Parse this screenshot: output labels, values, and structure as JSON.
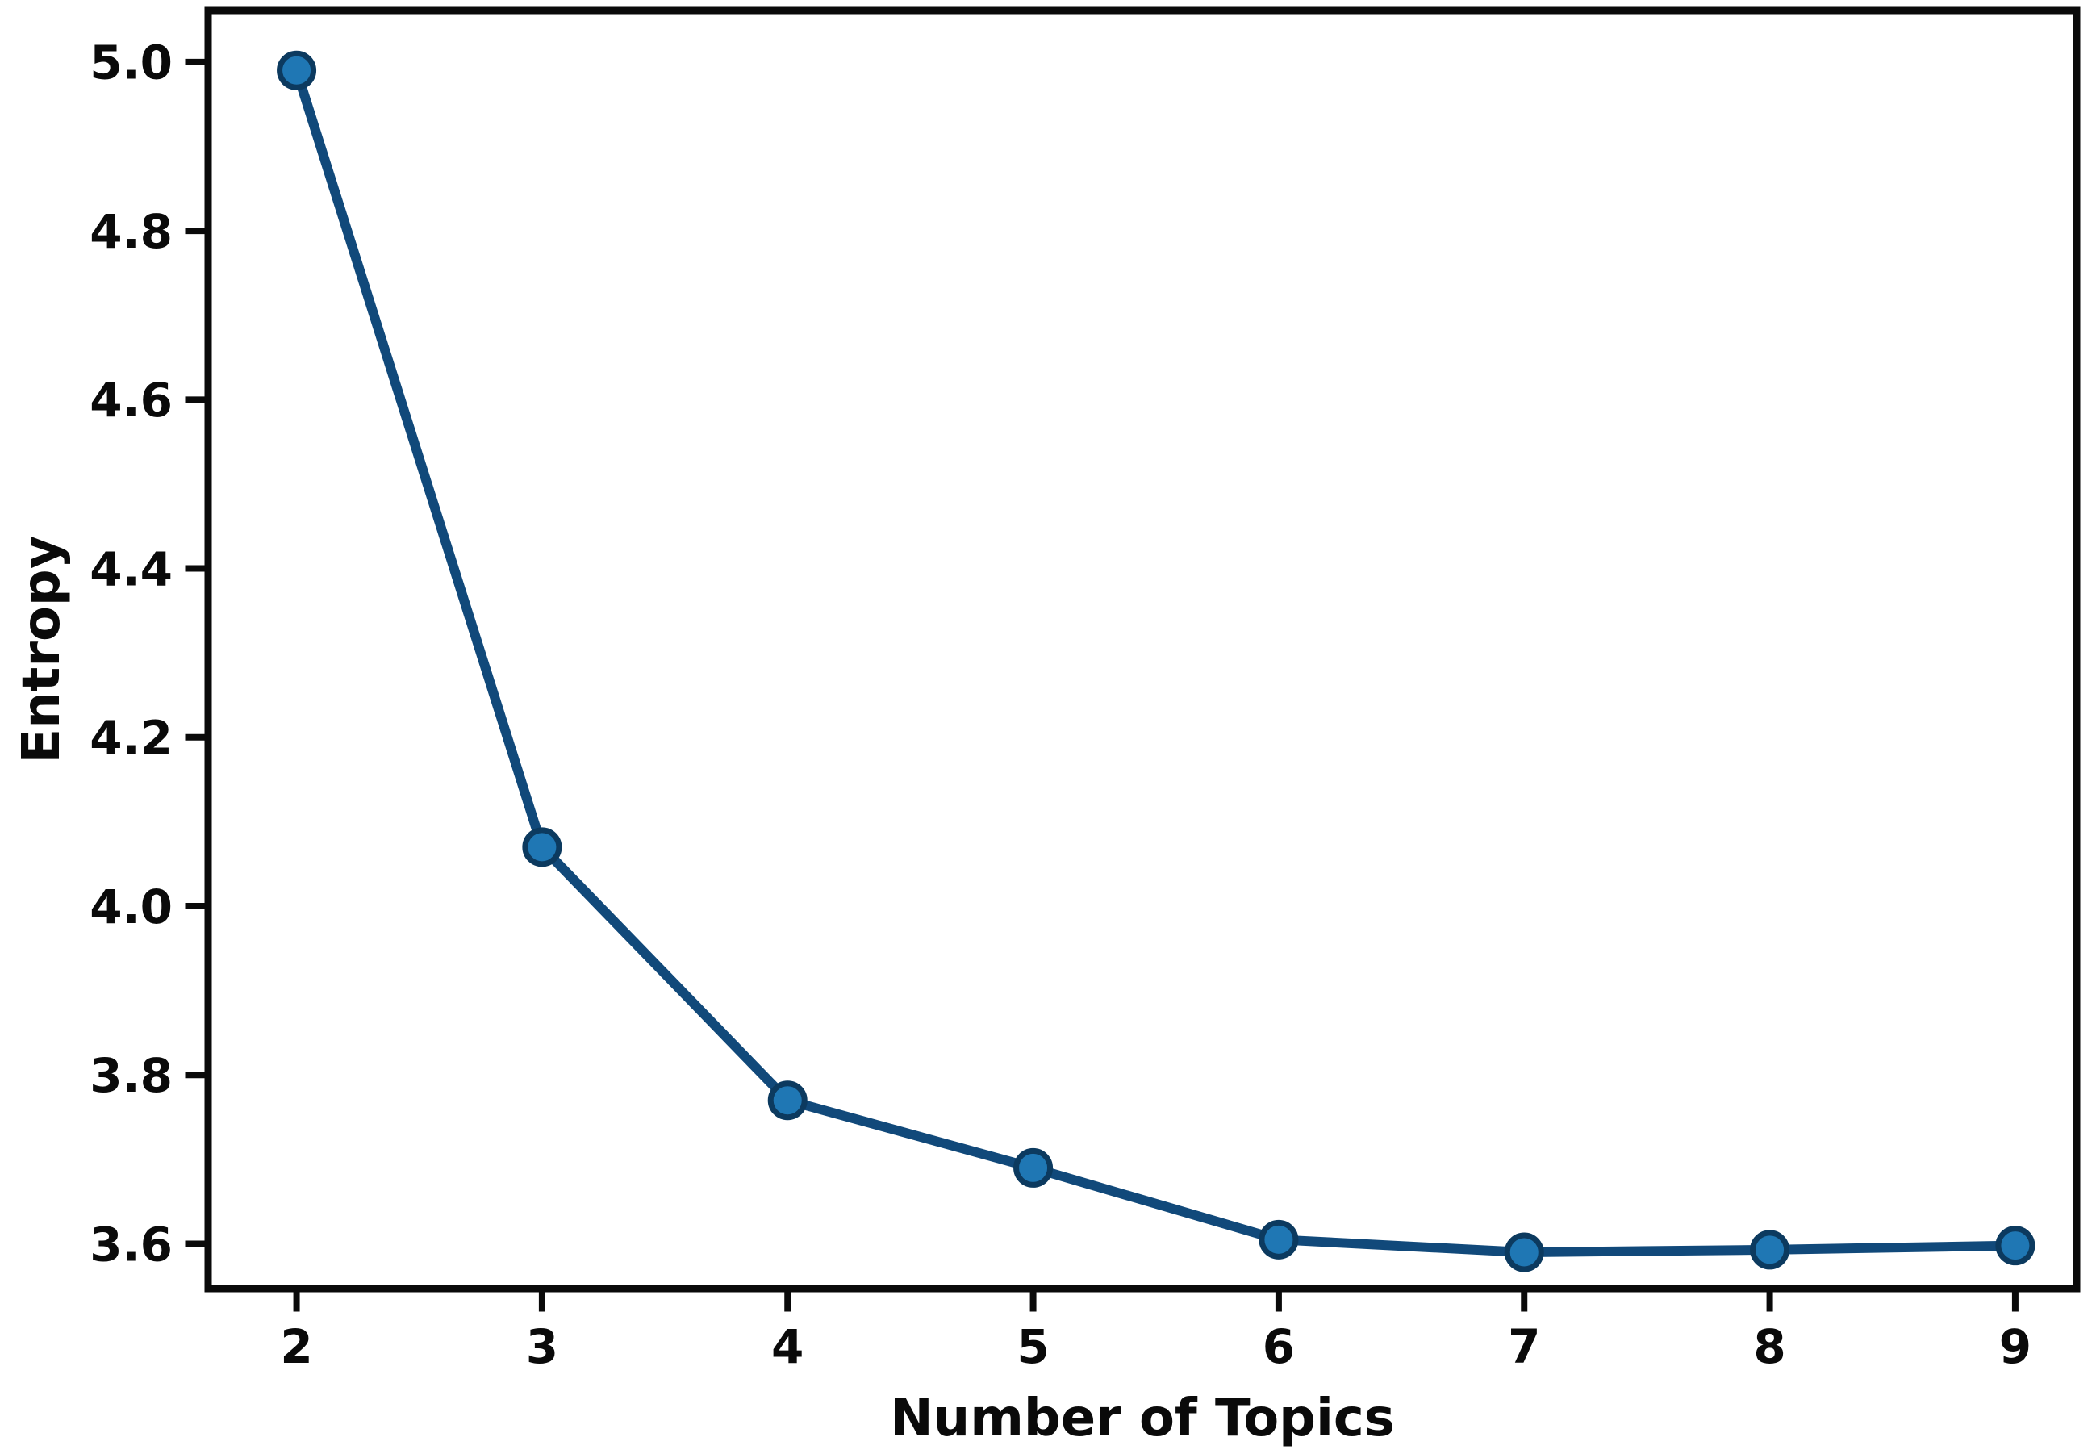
{
  "chart_data": {
    "type": "line",
    "title": "",
    "xlabel": "Number of Topics",
    "ylabel": "Entropy",
    "x": [
      2,
      3,
      4,
      5,
      6,
      7,
      8,
      9
    ],
    "series": [
      {
        "name": "Entropy",
        "values": [
          4.99,
          4.07,
          3.77,
          3.69,
          3.605,
          3.59,
          3.593,
          3.598
        ]
      }
    ],
    "x_ticks": [
      2,
      3,
      4,
      5,
      6,
      7,
      8,
      9
    ],
    "x_tick_labels": [
      "2",
      "3",
      "4",
      "5",
      "6",
      "7",
      "8",
      "9"
    ],
    "y_ticks": [
      3.6,
      3.8,
      4.0,
      4.2,
      4.4,
      4.6,
      4.8,
      5.0
    ],
    "y_tick_labels": [
      "3.6",
      "3.8",
      "4.0",
      "4.2",
      "4.4",
      "4.6",
      "4.8",
      "5.0"
    ],
    "xlim": [
      1.64,
      9.25
    ],
    "ylim": [
      3.547,
      5.061
    ],
    "grid": false,
    "legend": "none",
    "marker": "circle",
    "colors": {
      "line": "#11497a",
      "marker_fill": "#1f77b4",
      "marker_edge": "#0c3a5f",
      "axis": "#0a0a0a",
      "tick_label": "#0a0a0a",
      "background": "#ffffff"
    }
  }
}
